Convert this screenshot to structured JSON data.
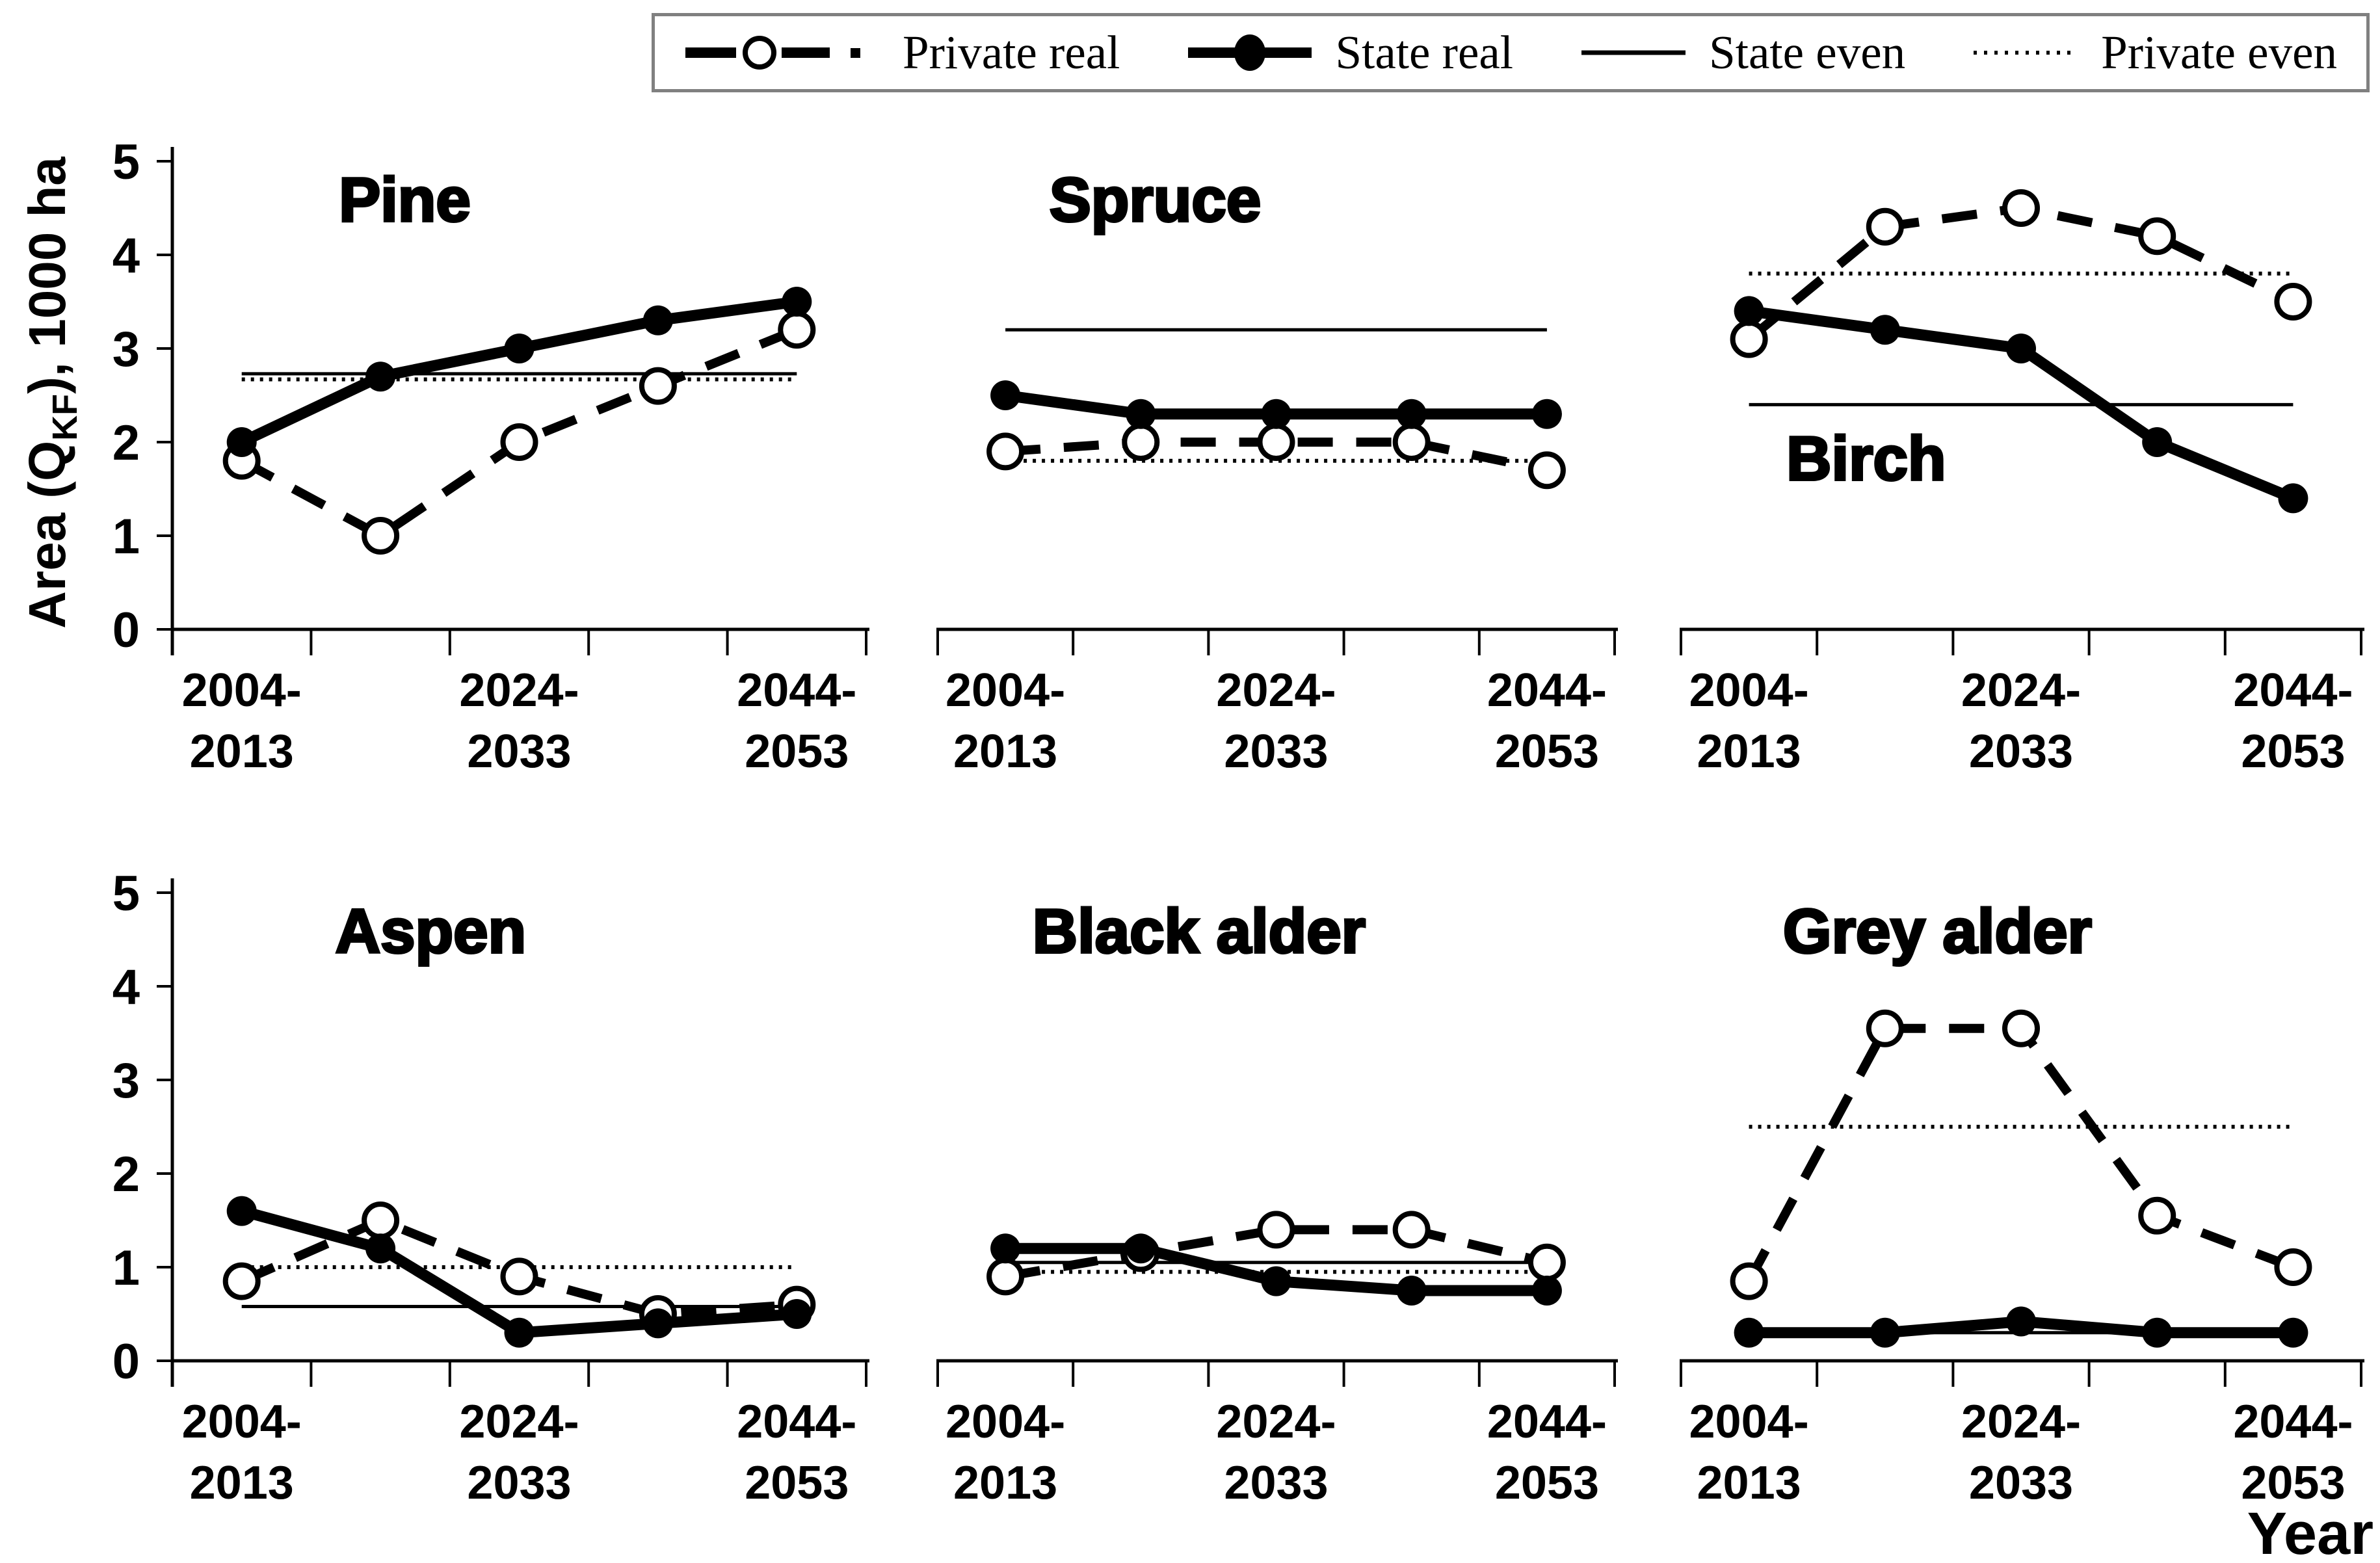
{
  "page": {
    "background": "#ffffff",
    "ink": "#000000",
    "legend_border": "#808080"
  },
  "legend": {
    "items": [
      {
        "label": "Private real",
        "marker": "dashed-line-open-circle"
      },
      {
        "label": "State real",
        "marker": "thick-line-filled-circle"
      },
      {
        "label": "State even",
        "marker": "thin-solid-line"
      },
      {
        "label": "Private even",
        "marker": "dotted-line"
      }
    ]
  },
  "axes": {
    "ylabel_prefix": "Area (Q",
    "ylabel_sub": "KF",
    "ylabel_suffix": "), 1000 ha",
    "xlabel": "Year",
    "ylim": [
      0,
      5
    ],
    "yticks": [
      "0",
      "1",
      "2",
      "3",
      "4",
      "5"
    ],
    "xtick_lines": [
      [
        "2004-",
        "2013"
      ],
      [
        "2024-",
        "2033"
      ],
      [
        "2044-",
        "2053"
      ]
    ]
  },
  "chart_data": [
    {
      "type": "line",
      "title": "Pine",
      "row": 0,
      "col": 0,
      "show_yaxis": true,
      "title_frac": 0.24,
      "title_v": "top",
      "ylim": [
        0,
        5
      ],
      "categories": [
        "2004-2013",
        "",
        "2024-2033",
        "",
        "2044-2053"
      ],
      "series": [
        {
          "name": "Private real",
          "values": [
            1.8,
            1.0,
            2.0,
            2.6,
            3.2
          ]
        },
        {
          "name": "State real",
          "values": [
            2.0,
            2.7,
            3.0,
            3.3,
            3.5
          ]
        },
        {
          "name": "State even",
          "constant": 2.73
        },
        {
          "name": "Private even",
          "constant": 2.67
        }
      ]
    },
    {
      "type": "line",
      "title": "Spruce",
      "row": 0,
      "col": 1,
      "show_yaxis": false,
      "title_frac": 0.165,
      "title_v": "top",
      "ylim": [
        0,
        5
      ],
      "categories": [
        "2004-2013",
        "",
        "2024-2033",
        "",
        "2044-2053"
      ],
      "series": [
        {
          "name": "Private real",
          "values": [
            1.9,
            2.0,
            2.0,
            2.0,
            1.7
          ]
        },
        {
          "name": "State real",
          "values": [
            2.5,
            2.3,
            2.3,
            2.3,
            2.3
          ]
        },
        {
          "name": "State even",
          "constant": 3.2
        },
        {
          "name": "Private even",
          "constant": 1.8
        }
      ]
    },
    {
      "type": "line",
      "title": "Birch",
      "row": 0,
      "col": 2,
      "show_yaxis": false,
      "title_frac": 0.155,
      "title_v": "middle",
      "ylim": [
        0,
        5
      ],
      "categories": [
        "2004-2013",
        "",
        "2024-2033",
        "",
        "2044-2053"
      ],
      "series": [
        {
          "name": "Private real",
          "values": [
            3.1,
            4.3,
            4.5,
            4.2,
            3.5
          ]
        },
        {
          "name": "State real",
          "values": [
            3.4,
            3.2,
            3.0,
            2.0,
            1.4
          ]
        },
        {
          "name": "State even",
          "constant": 2.4
        },
        {
          "name": "Private even",
          "constant": 3.8
        }
      ]
    },
    {
      "type": "line",
      "title": "Aspen",
      "row": 1,
      "col": 0,
      "show_yaxis": true,
      "title_frac": 0.235,
      "title_v": "top",
      "ylim": [
        0,
        5
      ],
      "categories": [
        "2004-2013",
        "",
        "2024-2033",
        "",
        "2044-2053"
      ],
      "series": [
        {
          "name": "Private real",
          "values": [
            0.85,
            1.5,
            0.9,
            0.5,
            0.6
          ]
        },
        {
          "name": "State real",
          "values": [
            1.6,
            1.2,
            0.3,
            0.4,
            0.5
          ]
        },
        {
          "name": "State even",
          "constant": 0.58
        },
        {
          "name": "Private even",
          "constant": 1.0
        }
      ]
    },
    {
      "type": "line",
      "title": "Black alder",
      "row": 1,
      "col": 1,
      "show_yaxis": false,
      "title_frac": 0.14,
      "title_v": "top",
      "ylim": [
        0,
        5
      ],
      "categories": [
        "2004-2013",
        "",
        "2024-2033",
        "",
        "2044-2053"
      ],
      "series": [
        {
          "name": "Private real",
          "values": [
            0.9,
            1.15,
            1.4,
            1.4,
            1.05
          ]
        },
        {
          "name": "State real",
          "values": [
            1.2,
            1.2,
            0.85,
            0.75,
            0.75
          ]
        },
        {
          "name": "State even",
          "constant": 1.05
        },
        {
          "name": "Private even",
          "constant": 0.95
        }
      ]
    },
    {
      "type": "line",
      "title": "Grey alder",
      "row": 1,
      "col": 2,
      "show_yaxis": false,
      "title_frac": 0.15,
      "title_v": "top",
      "ylim": [
        0,
        5
      ],
      "categories": [
        "2004-2013",
        "",
        "2024-2033",
        "",
        "2044-2053"
      ],
      "series": [
        {
          "name": "Private real",
          "values": [
            0.85,
            3.55,
            3.55,
            1.55,
            1.0
          ]
        },
        {
          "name": "State real",
          "values": [
            0.3,
            0.3,
            0.42,
            0.3,
            0.3
          ]
        },
        {
          "name": "State even",
          "constant": 0.3
        },
        {
          "name": "Private even",
          "constant": 2.5
        }
      ]
    }
  ]
}
